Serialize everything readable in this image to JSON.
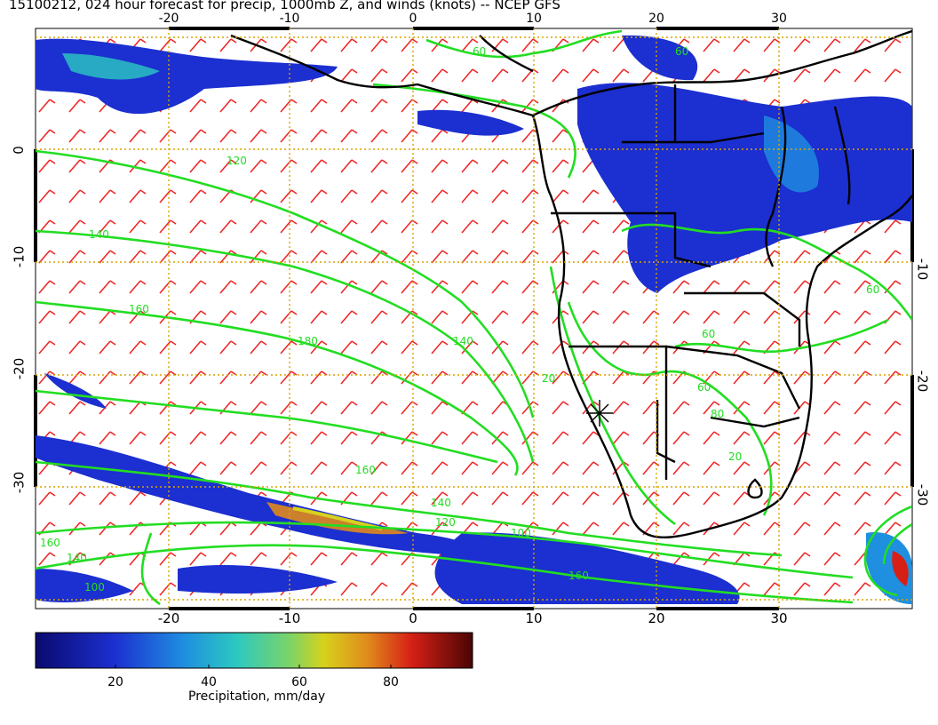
{
  "title": "15100212, 024 hour forecast for precip, 1000mb Z, and winds (knots) -- NCEP GFS",
  "axes": {
    "lon_ticks": [
      "-20",
      "-10",
      "0",
      "10",
      "20",
      "30"
    ],
    "lat_ticks_left": [
      "0",
      "-10",
      "-20",
      "-30"
    ],
    "lat_ticks_right": [
      "-10",
      "-20",
      "-30"
    ]
  },
  "contour_labels": [
    "60",
    "120",
    "140",
    "160",
    "180",
    "140",
    "160",
    "140",
    "120",
    "100",
    "160",
    "140",
    "100",
    "160",
    "20",
    "60",
    "80",
    "60",
    "60",
    "60",
    "20"
  ],
  "colorbar": {
    "title": "Precipitation, mm/day",
    "ticks": [
      "20",
      "40",
      "60",
      "80"
    ],
    "colors": [
      "#0a0a6e",
      "#1c2fd0",
      "#1f8fe0",
      "#2cc9c0",
      "#7ad36a",
      "#d7d21c",
      "#e08a1c",
      "#d62015",
      "#8a0f0f",
      "#4a0505"
    ]
  },
  "layer_colors": {
    "contours": "#22dd22",
    "winds": "#ee1c1c",
    "coast": "#000000",
    "grid": "#d9a400"
  }
}
